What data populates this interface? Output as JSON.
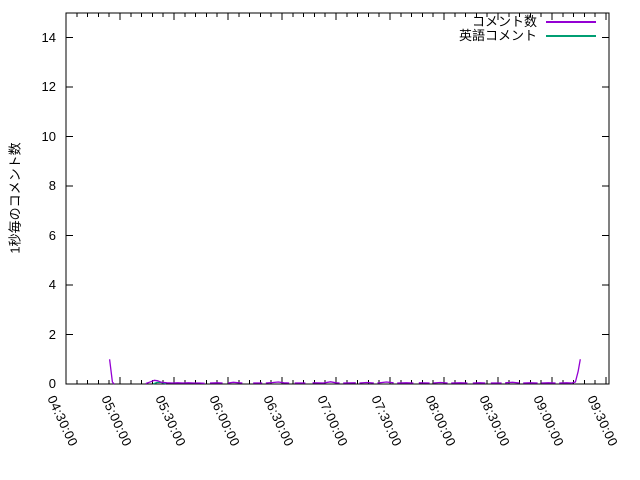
{
  "chart_data": {
    "type": "line",
    "title": "",
    "xlabel": "",
    "ylabel": "1秒毎のコメント数",
    "xlim": [
      "04:30:00",
      "09:30:00"
    ],
    "ylim": [
      0,
      15
    ],
    "grid": false,
    "legend_position": "top-right-inside",
    "x_tick_labels": [
      "04:30:00",
      "05:00:00",
      "05:30:00",
      "06:00:00",
      "06:30:00",
      "07:00:00",
      "07:30:00",
      "08:00:00",
      "08:30:00",
      "09:00:00",
      "09:30:00"
    ],
    "y_tick_values": [
      0,
      2,
      4,
      6,
      8,
      10,
      12,
      14
    ],
    "points_format": "[minutes_after_04:30:00, comments_per_second]",
    "series": [
      {
        "name": "コメント数",
        "color": "#9400d3",
        "segments": [
          [
            [
              24.2,
              1
            ],
            [
              25.8,
              0.08
            ],
            [
              26.8,
              0
            ]
          ],
          [
            [
              44.4,
              0.02
            ],
            [
              47,
              0.09
            ],
            [
              49,
              0.15
            ],
            [
              51,
              0.13
            ],
            [
              53,
              0.07
            ],
            [
              56,
              0.05
            ],
            [
              59,
              0.04
            ],
            [
              62,
              0.05
            ],
            [
              65,
              0.04
            ],
            [
              68,
              0.05
            ],
            [
              71,
              0.04
            ],
            [
              74,
              0.04
            ],
            [
              77,
              0.03
            ]
          ],
          [
            [
              80,
              0.04
            ],
            [
              84,
              0.05
            ],
            [
              87,
              0.04
            ]
          ],
          [
            [
              90,
              0.04
            ],
            [
              93,
              0.07
            ],
            [
              96,
              0.05
            ],
            [
              98,
              0.04
            ]
          ],
          [
            [
              104,
              0.04
            ],
            [
              109,
              0.04
            ]
          ],
          [
            [
              111,
              0.04
            ],
            [
              115,
              0.06
            ],
            [
              118,
              0.08
            ],
            [
              121,
              0.05
            ],
            [
              124,
              0.04
            ]
          ],
          [
            [
              127,
              0.04
            ],
            [
              133,
              0.04
            ]
          ],
          [
            [
              137,
              0.05
            ],
            [
              143,
              0.04
            ],
            [
              147,
              0.09
            ],
            [
              150,
              0.05
            ],
            [
              152,
              0.04
            ]
          ],
          [
            [
              154,
              0.04
            ],
            [
              161,
              0.05
            ]
          ],
          [
            [
              163,
              0.04
            ],
            [
              167,
              0.06
            ],
            [
              171,
              0.04
            ]
          ],
          [
            [
              173,
              0.04
            ],
            [
              178,
              0.08
            ],
            [
              182,
              0.05
            ]
          ],
          [
            [
              184,
              0.04
            ],
            [
              189,
              0.05
            ],
            [
              193,
              0.04
            ]
          ],
          [
            [
              196,
              0.05
            ],
            [
              202,
              0.04
            ]
          ],
          [
            [
              204,
              0.04
            ],
            [
              208,
              0.06
            ],
            [
              212,
              0.04
            ]
          ],
          [
            [
              214,
              0.04
            ],
            [
              219,
              0.05
            ],
            [
              223,
              0.04
            ]
          ],
          [
            [
              226,
              0.04
            ],
            [
              230,
              0.05
            ],
            [
              233,
              0.04
            ]
          ],
          [
            [
              236,
              0.04
            ],
            [
              242,
              0.04
            ]
          ],
          [
            [
              244,
              0.05
            ],
            [
              248,
              0.07
            ],
            [
              252,
              0.04
            ]
          ],
          [
            [
              254,
              0.04
            ],
            [
              258,
              0.05
            ],
            [
              262,
              0.04
            ]
          ],
          [
            [
              264,
              0.04
            ],
            [
              268,
              0.05
            ],
            [
              272,
              0.04
            ]
          ],
          [
            [
              274,
              0.04
            ],
            [
              278,
              0.05
            ],
            [
              281,
              0.04
            ]
          ],
          [
            [
              281,
              0.04
            ],
            [
              283,
              0.08
            ],
            [
              284.5,
              0.5
            ],
            [
              285.7,
              1
            ]
          ]
        ]
      },
      {
        "name": "英語コメント",
        "color": "#009e73",
        "segments": [
          [
            [
              48.5,
              0.01
            ],
            [
              50.5,
              0.06
            ],
            [
              52.5,
              0.07
            ],
            [
              54.5,
              0.03
            ],
            [
              55.5,
              0.01
            ]
          ]
        ]
      }
    ]
  }
}
